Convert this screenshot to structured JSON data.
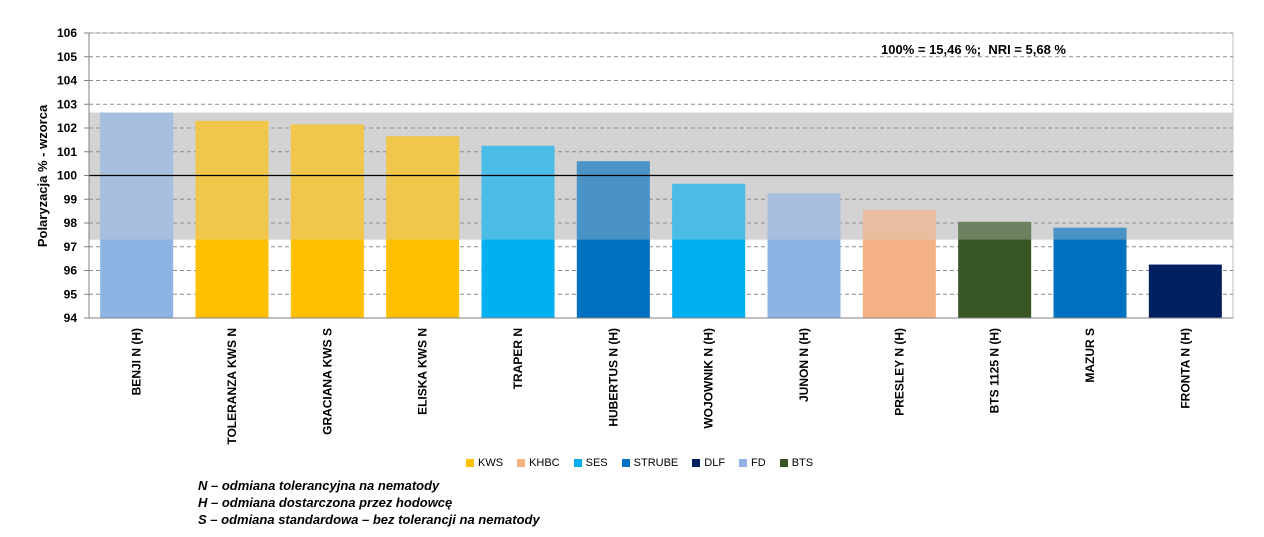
{
  "chart_data": {
    "type": "bar",
    "title": "",
    "ylabel": "Polaryzacja % - wzorca",
    "ylim": [
      94,
      106
    ],
    "yticks": [
      94,
      95,
      96,
      97,
      98,
      99,
      100,
      101,
      102,
      103,
      104,
      105,
      106
    ],
    "reference_line": 100,
    "band": [
      97.3,
      102.65
    ],
    "annotation": "100% = 15,46 %;  NRI = 5,68 %",
    "categories": [
      "BENJI N (H)",
      "TOLERANZA KWS N",
      "GRACIANA KWS S",
      "ELISKA KWS N",
      "TRAPER N",
      "HUBERTUS N (H)",
      "WOJOWNIK N (H)",
      "JUNON N (H)",
      "PRESLEY N (H)",
      "BTS 1125 N (H)",
      "MAZUR S",
      "FRONTA N (H)"
    ],
    "values": [
      102.65,
      102.3,
      102.15,
      101.65,
      101.25,
      100.6,
      99.65,
      99.25,
      98.55,
      98.05,
      97.8,
      96.25
    ],
    "companies": [
      "FD",
      "KWS",
      "KWS",
      "KWS",
      "SES",
      "STRUBE",
      "SES",
      "FD",
      "KHBC",
      "BTS",
      "STRUBE",
      "DLF"
    ],
    "legend_placement": "bottom",
    "grid": true
  },
  "colors": {
    "KWS": "#FFC000",
    "KHBC": "#F4B183",
    "SES": "#00B0F0",
    "STRUBE": "#0070C0",
    "DLF": "#002060",
    "FD": "#8EB4E3",
    "BTS": "#375623",
    "band": "#D3D3D3"
  },
  "legend": [
    {
      "label": "KWS",
      "key": "KWS"
    },
    {
      "label": "KHBC",
      "key": "KHBC"
    },
    {
      "label": "SES",
      "key": "SES"
    },
    {
      "label": "STRUBE",
      "key": "STRUBE"
    },
    {
      "label": "DLF",
      "key": "DLF"
    },
    {
      "label": "FD",
      "key": "FD"
    },
    {
      "label": "BTS",
      "key": "BTS"
    }
  ],
  "notes": [
    "N – odmiana tolerancyjna na nematody",
    "H – odmiana dostarczona przez hodowcę",
    "S – odmiana standardowa – bez tolerancji na nematody"
  ]
}
